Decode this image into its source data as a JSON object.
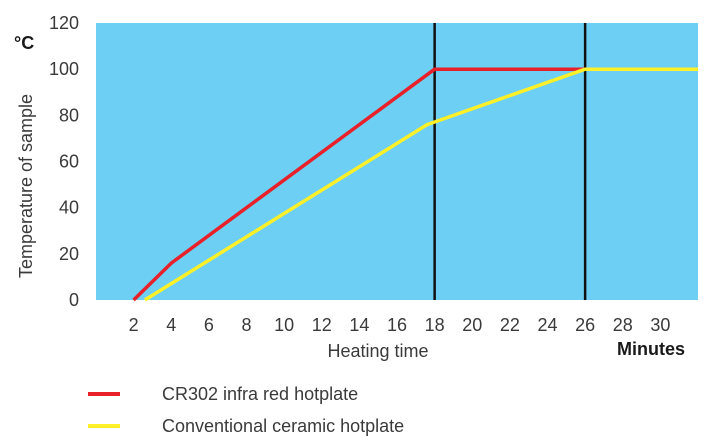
{
  "chart_data": {
    "type": "line",
    "unit_label": "°C",
    "ylabel": "Temperature of sample",
    "xlabel": "Heating time",
    "x_unit_label": "Minutes",
    "ylim": [
      0,
      120
    ],
    "xlim": [
      0,
      32
    ],
    "yticks": [
      0,
      20,
      40,
      60,
      80,
      100,
      120
    ],
    "xticks": [
      2,
      4,
      6,
      8,
      10,
      12,
      14,
      16,
      18,
      20,
      22,
      24,
      26,
      28,
      30
    ],
    "vertical_lines": [
      18,
      26
    ],
    "colors": {
      "plot_background": "#6ccff3",
      "axis_ticks": "#3a3a3a",
      "vline": "#111111"
    },
    "series": [
      {
        "name": "CR302 infra red hotplate",
        "color": "#e8202a",
        "x": [
          2,
          4,
          18,
          26
        ],
        "y": [
          0,
          16,
          100,
          100
        ]
      },
      {
        "name": "Conventional ceramic hotplate",
        "color": "#fff02a",
        "x": [
          2.6,
          17.6,
          26,
          32
        ],
        "y": [
          0,
          76,
          100,
          100
        ]
      }
    ]
  }
}
